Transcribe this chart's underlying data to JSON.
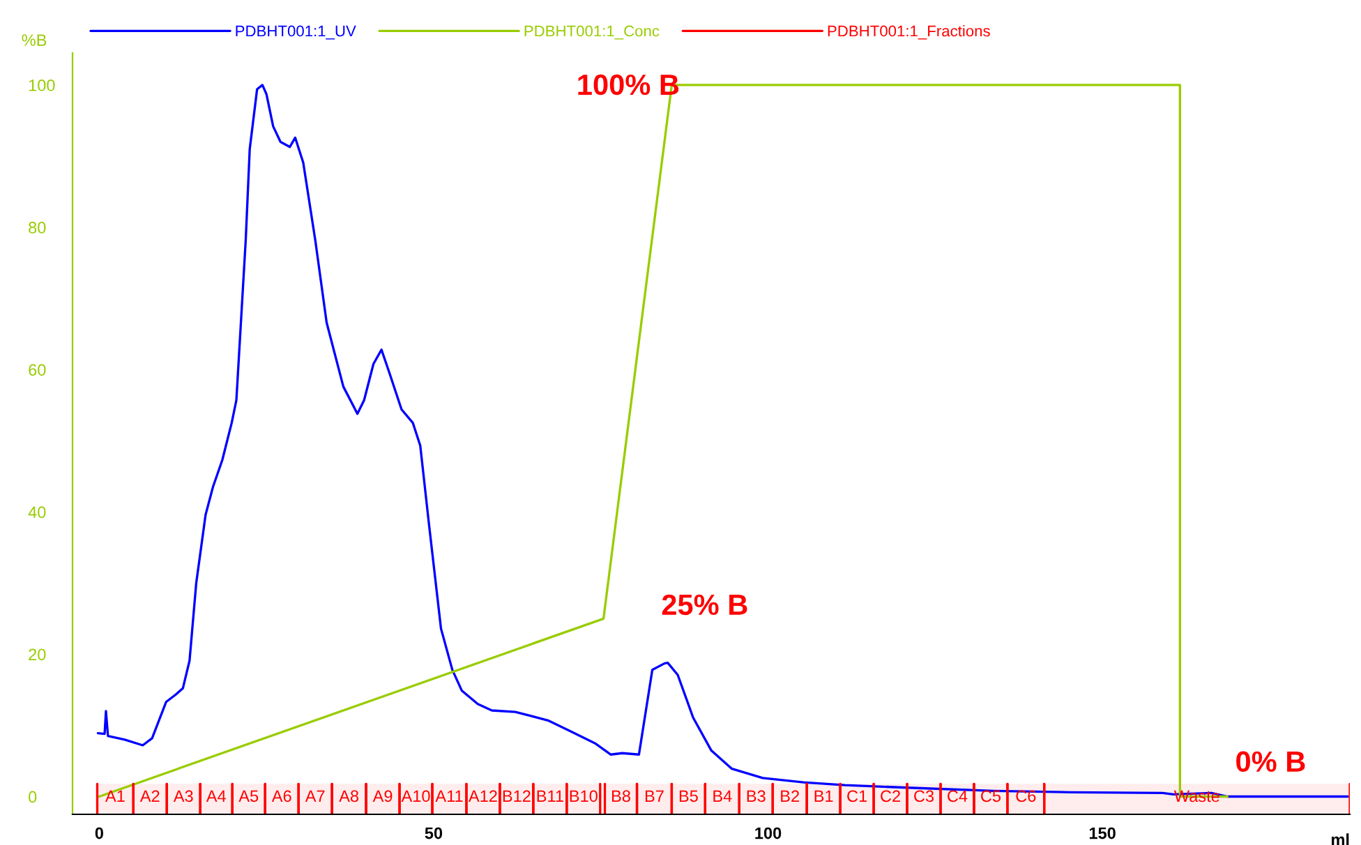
{
  "chart_data": {
    "type": "line",
    "ylabel": "%B",
    "xlabel": "ml",
    "xlim": [
      -4,
      187
    ],
    "ylim": [
      -2.5,
      104.5
    ],
    "xticks": [
      0,
      50,
      100,
      150
    ],
    "yticks": [
      0,
      20,
      40,
      60,
      80,
      100
    ],
    "grid": false,
    "legend": "top left",
    "line_style": "solid",
    "marker": "none",
    "series": [
      {
        "name": "PDBHT001:1_UV",
        "color": "#0000ff",
        "x": [
          -0.2,
          0.8,
          1.0,
          1.3,
          3.8,
          6.5,
          7.9,
          10.0,
          11.4,
          12.5,
          13.5,
          14.5,
          15.9,
          17.0,
          18.4,
          19.8,
          20.5,
          21.1,
          21.9,
          22.5,
          23.6,
          24.4,
          25.0,
          26.0,
          27.1,
          28.5,
          29.3,
          30.5,
          32.3,
          34.0,
          36.5,
          38.6,
          39.6,
          41.0,
          42.2,
          43.4,
          45.2,
          46.9,
          48.0,
          49.3,
          51.1,
          52.8,
          54.2,
          56.6,
          58.7,
          62.2,
          67.1,
          70.6,
          74.1,
          76.5,
          78.2,
          80.7,
          82.7,
          84.5,
          85.0,
          86.5,
          88.8,
          91.5,
          94.6,
          99.2,
          105.3,
          111.5,
          122.2,
          133.7,
          145.2,
          159.0,
          160.6,
          166.3,
          168.6,
          186.7
        ],
        "values": [
          8.9,
          8.8,
          12.0,
          8.5,
          8.0,
          7.2,
          8.2,
          13.3,
          14.3,
          15.2,
          19.1,
          30.0,
          39.6,
          43.5,
          47.3,
          52.5,
          55.7,
          65.3,
          78.2,
          91.0,
          99.4,
          100.0,
          98.7,
          94.2,
          92.0,
          91.3,
          92.6,
          89.1,
          78.2,
          66.6,
          57.6,
          53.8,
          55.7,
          60.8,
          62.8,
          59.5,
          54.4,
          52.5,
          49.3,
          38.3,
          23.6,
          17.8,
          14.9,
          13.0,
          12.1,
          11.9,
          10.7,
          9.1,
          7.5,
          5.9,
          6.1,
          5.9,
          17.8,
          18.7,
          18.8,
          17.1,
          11.1,
          6.5,
          3.9,
          2.6,
          2.0,
          1.6,
          1.2,
          0.8,
          0.6,
          0.5,
          0.3,
          0.5,
          0.0,
          0.0
        ]
      },
      {
        "name": "PDBHT001:1_Conc",
        "color": "#99cc00",
        "x": [
          0,
          75.4,
          85.6,
          161.6,
          161.6,
          168.7
        ],
        "values": [
          0,
          25,
          100,
          100,
          0,
          0
        ]
      },
      {
        "name": "PDBHT001:1_Fractions",
        "color": "#ff0000",
        "type": "other"
      }
    ],
    "bands": [
      {
        "axis": "x",
        "from": -0.3,
        "to": 5.1,
        "label": "A1",
        "color": "#ff0000"
      },
      {
        "axis": "x",
        "from": 5.1,
        "to": 10.1,
        "label": "A2",
        "color": "#ff0000"
      },
      {
        "axis": "x",
        "from": 10.1,
        "to": 15.1,
        "label": "A3",
        "color": "#ff0000"
      },
      {
        "axis": "x",
        "from": 15.1,
        "to": 19.9,
        "label": "A4",
        "color": "#ff0000"
      },
      {
        "axis": "x",
        "from": 19.9,
        "to": 24.8,
        "label": "A5",
        "color": "#ff0000"
      },
      {
        "axis": "x",
        "from": 24.8,
        "to": 29.8,
        "label": "A6",
        "color": "#ff0000"
      },
      {
        "axis": "x",
        "from": 29.8,
        "to": 34.8,
        "label": "A7",
        "color": "#ff0000"
      },
      {
        "axis": "x",
        "from": 34.8,
        "to": 39.9,
        "label": "A8",
        "color": "#ff0000"
      },
      {
        "axis": "x",
        "from": 39.9,
        "to": 44.9,
        "label": "A9",
        "color": "#ff0000"
      },
      {
        "axis": "x",
        "from": 44.9,
        "to": 49.8,
        "label": "A10",
        "color": "#ff0000"
      },
      {
        "axis": "x",
        "from": 49.8,
        "to": 54.9,
        "label": "A11",
        "color": "#ff0000"
      },
      {
        "axis": "x",
        "from": 54.9,
        "to": 59.9,
        "label": "A12",
        "color": "#ff0000"
      },
      {
        "axis": "x",
        "from": 59.9,
        "to": 64.9,
        "label": "B12",
        "color": "#ff0000"
      },
      {
        "axis": "x",
        "from": 64.9,
        "to": 69.9,
        "label": "B11",
        "color": "#ff0000"
      },
      {
        "axis": "x",
        "from": 69.9,
        "to": 74.9,
        "label": "B10",
        "color": "#ff0000"
      },
      {
        "axis": "x",
        "from": 75.6,
        "to": 80.4,
        "label": "B8",
        "color": "#ff0000"
      },
      {
        "axis": "x",
        "from": 80.4,
        "to": 85.6,
        "label": "B7",
        "color": "#ff0000"
      },
      {
        "axis": "x",
        "from": 85.6,
        "to": 90.6,
        "label": "B5",
        "color": "#ff0000"
      },
      {
        "axis": "x",
        "from": 90.6,
        "to": 95.7,
        "label": "B4",
        "color": "#ff0000"
      },
      {
        "axis": "x",
        "from": 95.7,
        "to": 100.7,
        "label": "B3",
        "color": "#ff0000"
      },
      {
        "axis": "x",
        "from": 100.7,
        "to": 105.8,
        "label": "B2",
        "color": "#ff0000"
      },
      {
        "axis": "x",
        "from": 105.8,
        "to": 110.8,
        "label": "B1",
        "color": "#ff0000"
      },
      {
        "axis": "x",
        "from": 110.8,
        "to": 115.8,
        "label": "C1",
        "color": "#ff0000"
      },
      {
        "axis": "x",
        "from": 115.8,
        "to": 120.8,
        "label": "C2",
        "color": "#ff0000"
      },
      {
        "axis": "x",
        "from": 120.8,
        "to": 125.8,
        "label": "C3",
        "color": "#ff0000"
      },
      {
        "axis": "x",
        "from": 125.8,
        "to": 130.8,
        "label": "C4",
        "color": "#ff0000"
      },
      {
        "axis": "x",
        "from": 130.8,
        "to": 135.8,
        "label": "C5",
        "color": "#ff0000"
      },
      {
        "axis": "x",
        "from": 135.8,
        "to": 141.3,
        "label": "C6",
        "color": "#ff0000"
      },
      {
        "axis": "x",
        "from": 141.3,
        "to": 187,
        "label": "Waste",
        "color": "#ff0000"
      }
    ],
    "annotations": [
      "100% B",
      "25% B",
      "0% B"
    ]
  }
}
